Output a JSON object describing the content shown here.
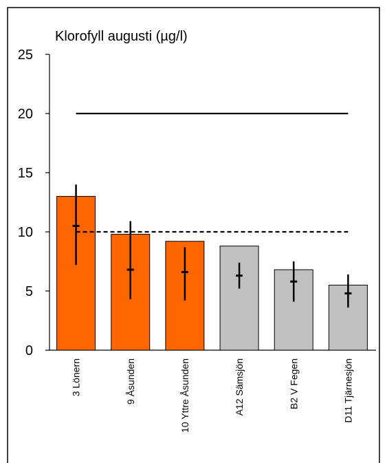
{
  "chart_data": {
    "type": "bar",
    "title": "Klorofyll augusti (µg/l)",
    "xlabel": "",
    "ylabel": "",
    "ylim": [
      0,
      25
    ],
    "yticks": [
      0,
      5,
      10,
      15,
      20,
      25
    ],
    "categories": [
      "3 Lönern",
      "9 Åsunden",
      "10 Yttre Åsunden",
      "A12 Sämsjön",
      "B2 V Fegen",
      "D11 Tjärnesjön"
    ],
    "values": [
      13.0,
      9.8,
      9.2,
      8.8,
      6.8,
      5.5
    ],
    "bar_colors": [
      "#FF6600",
      "#FF6600",
      "#FF6600",
      "#C0C0C0",
      "#C0C0C0",
      "#C0C0C0"
    ],
    "median_marker": [
      10.5,
      6.8,
      6.6,
      6.3,
      5.8,
      4.8
    ],
    "range_low": [
      7.2,
      4.3,
      4.2,
      5.2,
      4.1,
      3.6
    ],
    "range_high": [
      14.0,
      10.9,
      8.7,
      7.4,
      7.5,
      6.4
    ],
    "reference_lines": [
      {
        "value": 20,
        "style": "solid",
        "from_category": 0,
        "to_category": 5
      },
      {
        "value": 10,
        "style": "dashed",
        "from_category": 0,
        "to_category": 5
      }
    ],
    "grid": false
  }
}
